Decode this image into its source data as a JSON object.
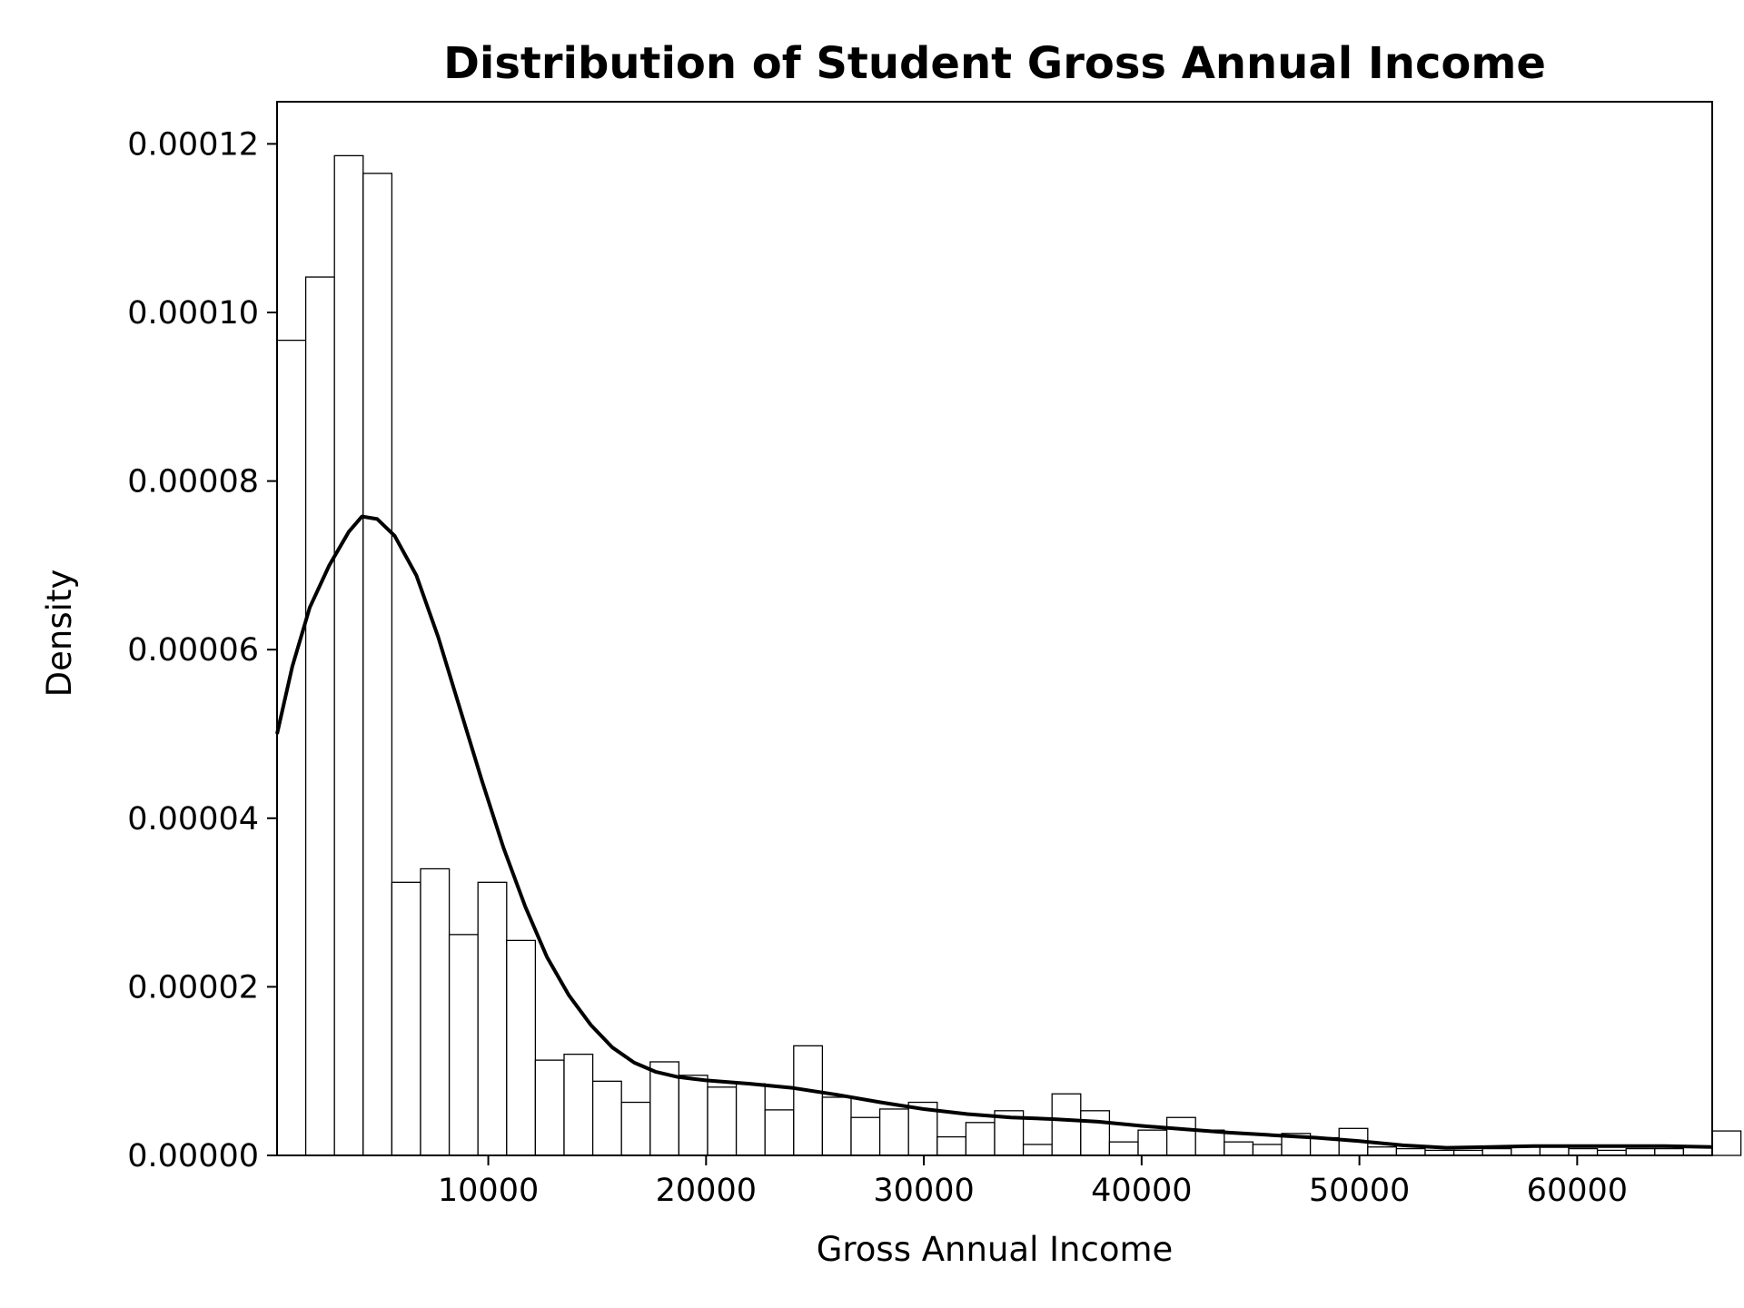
{
  "chart_data": {
    "type": "bar",
    "subtype": "histogram-with-kde",
    "title": "Distribution of Student Gross Annual Income",
    "xlabel": "Gross Annual Income",
    "ylabel": "Density",
    "xlim": [
      300,
      66200
    ],
    "ylim": [
      0,
      0.000125
    ],
    "xticks": [
      10000,
      20000,
      30000,
      40000,
      50000,
      60000
    ],
    "xtick_labels": [
      "10000",
      "20000",
      "30000",
      "40000",
      "50000",
      "60000"
    ],
    "yticks": [
      0,
      2e-05,
      4e-05,
      6e-05,
      8e-05,
      0.0001,
      0.00012
    ],
    "ytick_labels": [
      "0.00000",
      "0.00002",
      "0.00004",
      "0.00006",
      "0.00008",
      "0.00010",
      "0.00012"
    ],
    "grid": false,
    "bar_fill": "#ffffff",
    "bar_edge": "#000000",
    "line_color": "#000000",
    "bin_start": 300,
    "bin_width": 1318,
    "values": [
      9.67e-05,
      0.0001042,
      0.0001186,
      0.0001165,
      3.24e-05,
      3.4e-05,
      2.62e-05,
      3.24e-05,
      2.55e-05,
      1.13e-05,
      1.2e-05,
      8.8e-06,
      6.3e-06,
      1.11e-05,
      9.5e-06,
      8.1e-06,
      8.5e-06,
      5.4e-06,
      1.3e-05,
      6.9e-06,
      4.5e-06,
      5.5e-06,
      6.3e-06,
      2.2e-06,
      3.9e-06,
      5.3e-06,
      1.3e-06,
      7.3e-06,
      5.3e-06,
      1.6e-06,
      3e-06,
      4.5e-06,
      3e-06,
      1.6e-06,
      1.3e-06,
      2.6e-06,
      2.1e-06,
      3.2e-06,
      1e-06,
      8e-07,
      6e-07,
      6e-07,
      8e-07,
      1.1e-06,
      1.1e-06,
      8e-07,
      6e-07,
      8e-07,
      8e-07,
      1e-06,
      2.9e-06
    ],
    "kde": {
      "x": [
        300,
        1000,
        1800,
        2700,
        3600,
        4200,
        4900,
        5700,
        6700,
        7700,
        8700,
        9700,
        10700,
        11700,
        12700,
        13700,
        14700,
        15700,
        16700,
        17700,
        18700,
        20000,
        22000,
        24000,
        26000,
        28000,
        30000,
        32000,
        34000,
        36000,
        38000,
        40000,
        42000,
        44000,
        46000,
        48000,
        50000,
        52000,
        54000,
        56000,
        58000,
        60000,
        62000,
        64000,
        66200
      ],
      "y": [
        5e-05,
        5.8e-05,
        6.5e-05,
        7e-05,
        7.4e-05,
        7.58e-05,
        7.55e-05,
        7.35e-05,
        6.88e-05,
        6.15e-05,
        5.3e-05,
        4.45e-05,
        3.65e-05,
        2.95e-05,
        2.35e-05,
        1.9e-05,
        1.55e-05,
        1.28e-05,
        1.1e-05,
        9.9e-06,
        9.3e-06,
        8.9e-06,
        8.5e-06,
        8e-06,
        7.2e-06,
        6.3e-06,
        5.5e-06,
        4.9e-06,
        4.5e-06,
        4.3e-06,
        4e-06,
        3.5e-06,
        3.1e-06,
        2.7e-06,
        2.4e-06,
        2.1e-06,
        1.7e-06,
        1.2e-06,
        9e-07,
        1e-06,
        1.1e-06,
        1.1e-06,
        1.1e-06,
        1.1e-06,
        1e-06
      ]
    }
  }
}
